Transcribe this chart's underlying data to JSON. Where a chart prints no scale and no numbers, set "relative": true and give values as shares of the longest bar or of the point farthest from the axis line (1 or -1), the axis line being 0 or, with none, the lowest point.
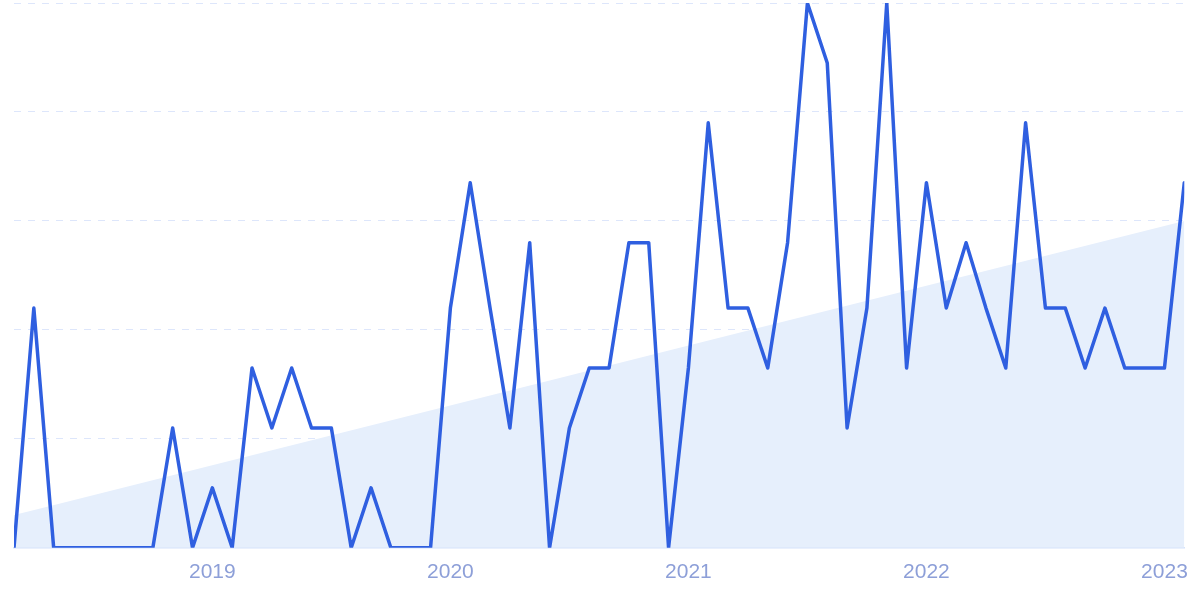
{
  "chart_data": {
    "type": "line",
    "relative": true,
    "grid": "y",
    "x": [
      "2018-03",
      "2018-04",
      "2018-05",
      "2018-06",
      "2018-07",
      "2018-08",
      "2018-09",
      "2018-10",
      "2018-11",
      "2018-12",
      "2019-01",
      "2019-02",
      "2019-03",
      "2019-04",
      "2019-05",
      "2019-06",
      "2019-07",
      "2019-08",
      "2019-09",
      "2019-10",
      "2019-11",
      "2019-12",
      "2020-01",
      "2020-02",
      "2020-03",
      "2020-04",
      "2020-05",
      "2020-06",
      "2020-07",
      "2020-08",
      "2020-09",
      "2020-10",
      "2020-11",
      "2020-12",
      "2021-01",
      "2021-02",
      "2021-03",
      "2021-04",
      "2021-05",
      "2021-06",
      "2021-07",
      "2021-08",
      "2021-09",
      "2021-10",
      "2021-11",
      "2021-12",
      "2022-01",
      "2022-02",
      "2022-03",
      "2022-04",
      "2022-05",
      "2022-06",
      "2022-07",
      "2022-08",
      "2022-09",
      "2022-10",
      "2022-11",
      "2022-12",
      "2023-01",
      "2023-02"
    ],
    "xlim": [
      "2018-03",
      "2023-02"
    ],
    "xticks": [
      "2019",
      "2020",
      "2021",
      "2022",
      "2023"
    ],
    "series": [
      {
        "type": "area",
        "color": "#e6effc",
        "x": [
          "2018-03",
          "2023-02"
        ],
        "values": [
          0.06,
          0.6
        ]
      },
      {
        "color": "#2f5fe0",
        "values": [
          0,
          0.44,
          0,
          0,
          0,
          0,
          0,
          0,
          0.22,
          0,
          0.11,
          0,
          0.33,
          0.22,
          0.33,
          0.22,
          0.22,
          0,
          0.11,
          0,
          0,
          0,
          0.44,
          0.67,
          0.44,
          0.22,
          0.56,
          0,
          0.22,
          0.33,
          0.33,
          0.56,
          0.56,
          0,
          0.33,
          0.78,
          0.44,
          0.44,
          0.33,
          0.56,
          1,
          0.89,
          0.22,
          0.44,
          1,
          0.33,
          0.67,
          0.44,
          0.56,
          0.44,
          0.33,
          0.78,
          0.44,
          0.44,
          0.33,
          0.44,
          0.33,
          0.33,
          0.33,
          0.67
        ]
      }
    ]
  }
}
